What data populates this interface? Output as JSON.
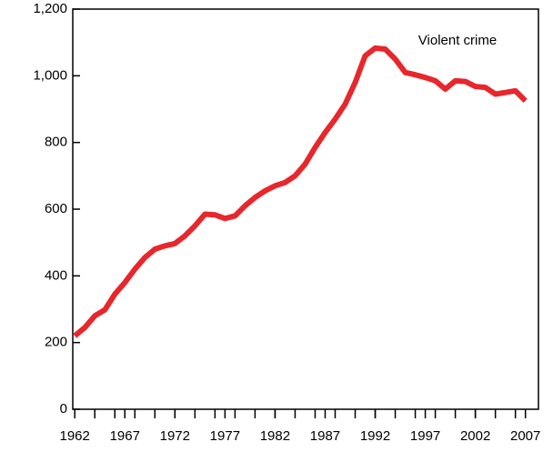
{
  "chart_data": {
    "type": "line",
    "x": [
      1962,
      1963,
      1964,
      1965,
      1966,
      1967,
      1968,
      1969,
      1970,
      1971,
      1972,
      1973,
      1974,
      1975,
      1976,
      1977,
      1978,
      1979,
      1980,
      1981,
      1982,
      1983,
      1984,
      1985,
      1986,
      1987,
      1988,
      1989,
      1990,
      1991,
      1992,
      1993,
      1994,
      1995,
      1996,
      1997,
      1998,
      1999,
      2000,
      2001,
      2002,
      2003,
      2004,
      2005,
      2006,
      2007
    ],
    "series": [
      {
        "name": "Violent crime",
        "color": "#e8262b",
        "values": [
          220,
          245,
          280,
          298,
          345,
          380,
          420,
          455,
          480,
          490,
          497,
          520,
          550,
          585,
          583,
          572,
          580,
          610,
          635,
          655,
          670,
          680,
          700,
          735,
          785,
          830,
          870,
          915,
          980,
          1060,
          1083,
          1080,
          1050,
          1010,
          1003,
          995,
          985,
          960,
          985,
          983,
          968,
          965,
          945,
          950,
          955,
          925
        ]
      }
    ],
    "xlim": [
      1961.8,
      2008.3
    ],
    "xticks": [
      1962,
      1967,
      1972,
      1977,
      1982,
      1987,
      1992,
      1997,
      2002,
      2007
    ],
    "xticks_minor": [
      1964,
      1966,
      1968,
      1970,
      1972,
      1974,
      1976,
      1978,
      1980,
      1982,
      1984,
      1986,
      1988,
      1990,
      1992,
      1994,
      1996,
      1998,
      2000,
      2002,
      2004,
      2006
    ],
    "ylim": [
      0,
      1200
    ],
    "yticks": [
      0,
      200,
      400,
      600,
      800,
      {
        "value": 1000,
        "label": "1,000"
      },
      {
        "value": 1200,
        "label": "1,200"
      }
    ]
  }
}
